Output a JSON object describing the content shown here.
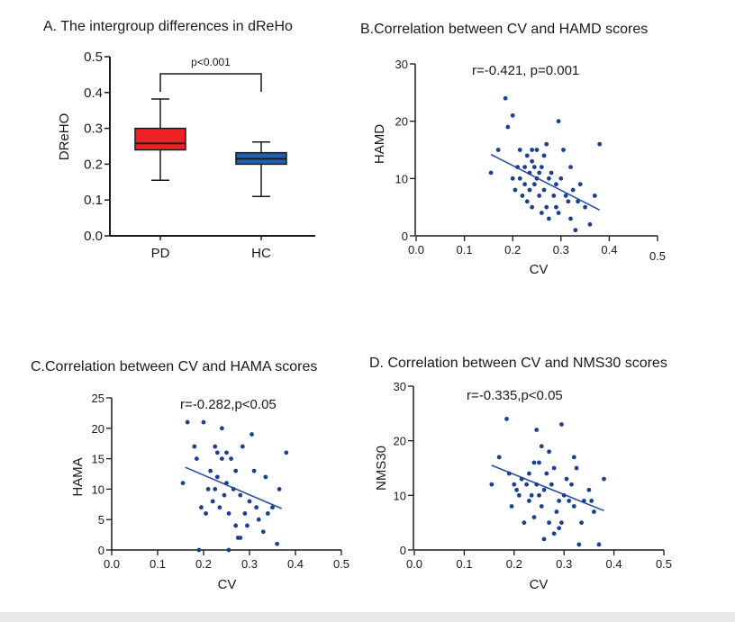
{
  "colors": {
    "pd_box": "#ee2124",
    "hc_box": "#1f5fae",
    "points": "#1d3f91",
    "fit_line": "#2a4ea0",
    "axis": "#1a1a1a"
  },
  "chart_data": [
    {
      "type": "box",
      "title": "A. The intergroup differences in dReHo",
      "xlabel": "",
      "ylabel": "DReHO",
      "ylim": [
        0.0,
        0.5
      ],
      "yticks": [
        "0.0",
        "0.1",
        "0.2",
        "0.3",
        "0.4",
        "0.5"
      ],
      "categories": [
        "PD",
        "HC"
      ],
      "boxes": [
        {
          "name": "PD",
          "min": 0.155,
          "q1": 0.24,
          "median": 0.258,
          "q3": 0.3,
          "max": 0.382,
          "color": "#ee2124"
        },
        {
          "name": "HC",
          "min": 0.11,
          "q1": 0.2,
          "median": 0.215,
          "q3": 0.232,
          "max": 0.262,
          "color": "#1f5fae"
        }
      ],
      "annotation": "p<0.001",
      "grid": false
    },
    {
      "type": "scatter",
      "title": "B.Correlation between CV and HAMD scores",
      "xlabel": "CV",
      "ylabel": "HAMD",
      "xlim": [
        0.0,
        0.5
      ],
      "ylim": [
        0,
        30
      ],
      "xticks": [
        "0.0",
        "0.1",
        "0.2",
        "0.3",
        "0.4",
        "0.5"
      ],
      "yticks": [
        "0",
        "10",
        "20",
        "30"
      ],
      "annotation": "r=-0.421, p=0.001",
      "fit_line": [
        [
          0.155,
          14.2
        ],
        [
          0.38,
          4.5
        ]
      ],
      "points": [
        [
          0.155,
          11
        ],
        [
          0.17,
          15
        ],
        [
          0.185,
          24
        ],
        [
          0.19,
          19
        ],
        [
          0.2,
          21
        ],
        [
          0.2,
          10
        ],
        [
          0.205,
          8
        ],
        [
          0.21,
          12
        ],
        [
          0.215,
          10
        ],
        [
          0.215,
          15
        ],
        [
          0.22,
          7
        ],
        [
          0.225,
          12
        ],
        [
          0.225,
          9
        ],
        [
          0.23,
          14
        ],
        [
          0.23,
          6
        ],
        [
          0.235,
          11
        ],
        [
          0.235,
          8
        ],
        [
          0.24,
          13
        ],
        [
          0.24,
          15
        ],
        [
          0.24,
          5
        ],
        [
          0.245,
          9
        ],
        [
          0.245,
          12
        ],
        [
          0.25,
          10
        ],
        [
          0.25,
          15
        ],
        [
          0.255,
          7
        ],
        [
          0.255,
          11
        ],
        [
          0.26,
          12
        ],
        [
          0.26,
          4
        ],
        [
          0.265,
          8
        ],
        [
          0.265,
          14
        ],
        [
          0.27,
          16
        ],
        [
          0.27,
          5
        ],
        [
          0.275,
          10
        ],
        [
          0.275,
          3
        ],
        [
          0.28,
          11
        ],
        [
          0.285,
          7
        ],
        [
          0.29,
          5
        ],
        [
          0.29,
          9
        ],
        [
          0.295,
          20
        ],
        [
          0.295,
          4
        ],
        [
          0.3,
          10
        ],
        [
          0.305,
          15
        ],
        [
          0.31,
          7
        ],
        [
          0.315,
          6
        ],
        [
          0.32,
          12
        ],
        [
          0.32,
          3
        ],
        [
          0.325,
          8
        ],
        [
          0.33,
          1
        ],
        [
          0.335,
          6
        ],
        [
          0.34,
          9
        ],
        [
          0.35,
          5
        ],
        [
          0.36,
          2
        ],
        [
          0.37,
          7
        ],
        [
          0.38,
          16
        ]
      ],
      "grid": false
    },
    {
      "type": "scatter",
      "title": "C.Correlation between CV and HAMA scores",
      "xlabel": "CV",
      "ylabel": "HAMA",
      "xlim": [
        0.0,
        0.5
      ],
      "ylim": [
        0,
        25
      ],
      "xticks": [
        "0.0",
        "0.1",
        "0.2",
        "0.3",
        "0.4",
        "0.5"
      ],
      "yticks": [
        "0",
        "5",
        "10",
        "15",
        "20",
        "25"
      ],
      "annotation": "r=-0.282,p<0.05",
      "fit_line": [
        [
          0.16,
          13.6
        ],
        [
          0.37,
          6.8
        ]
      ],
      "points": [
        [
          0.155,
          11
        ],
        [
          0.165,
          21
        ],
        [
          0.18,
          17
        ],
        [
          0.185,
          15
        ],
        [
          0.19,
          0
        ],
        [
          0.195,
          7
        ],
        [
          0.2,
          21
        ],
        [
          0.205,
          6
        ],
        [
          0.21,
          10
        ],
        [
          0.215,
          13
        ],
        [
          0.22,
          8
        ],
        [
          0.225,
          10
        ],
        [
          0.225,
          17
        ],
        [
          0.23,
          16
        ],
        [
          0.23,
          12
        ],
        [
          0.235,
          7
        ],
        [
          0.24,
          20
        ],
        [
          0.24,
          15
        ],
        [
          0.245,
          9
        ],
        [
          0.25,
          11
        ],
        [
          0.25,
          16
        ],
        [
          0.255,
          0
        ],
        [
          0.255,
          6
        ],
        [
          0.26,
          15
        ],
        [
          0.265,
          10
        ],
        [
          0.27,
          13
        ],
        [
          0.27,
          4
        ],
        [
          0.275,
          2
        ],
        [
          0.28,
          2
        ],
        [
          0.28,
          9
        ],
        [
          0.285,
          17
        ],
        [
          0.29,
          6
        ],
        [
          0.295,
          4
        ],
        [
          0.3,
          8
        ],
        [
          0.305,
          19
        ],
        [
          0.31,
          13
        ],
        [
          0.315,
          7
        ],
        [
          0.32,
          5
        ],
        [
          0.33,
          3
        ],
        [
          0.335,
          12
        ],
        [
          0.34,
          6
        ],
        [
          0.35,
          7
        ],
        [
          0.36,
          1
        ],
        [
          0.365,
          10
        ],
        [
          0.38,
          16
        ]
      ],
      "grid": false
    },
    {
      "type": "scatter",
      "title": "D. Correlation between CV and NMS30 scores",
      "xlabel": "CV",
      "ylabel": "NMS30",
      "xlim": [
        0.0,
        0.5
      ],
      "ylim": [
        0,
        30
      ],
      "xticks": [
        "0.0",
        "0.1",
        "0.2",
        "0.3",
        "0.4",
        "0.5"
      ],
      "yticks": [
        "0",
        "10",
        "20",
        "30"
      ],
      "annotation": "r=-0.335,p<0.05",
      "fit_line": [
        [
          0.155,
          15.5
        ],
        [
          0.38,
          7.2
        ]
      ],
      "points": [
        [
          0.155,
          12
        ],
        [
          0.17,
          17
        ],
        [
          0.185,
          24
        ],
        [
          0.19,
          14
        ],
        [
          0.195,
          8
        ],
        [
          0.2,
          12
        ],
        [
          0.205,
          11
        ],
        [
          0.21,
          10
        ],
        [
          0.215,
          13
        ],
        [
          0.22,
          5
        ],
        [
          0.225,
          12
        ],
        [
          0.23,
          9
        ],
        [
          0.23,
          14
        ],
        [
          0.235,
          10
        ],
        [
          0.24,
          16
        ],
        [
          0.24,
          6
        ],
        [
          0.245,
          12
        ],
        [
          0.245,
          22
        ],
        [
          0.25,
          10
        ],
        [
          0.25,
          16
        ],
        [
          0.255,
          8
        ],
        [
          0.255,
          19
        ],
        [
          0.26,
          2
        ],
        [
          0.26,
          11
        ],
        [
          0.265,
          14
        ],
        [
          0.27,
          18
        ],
        [
          0.27,
          5
        ],
        [
          0.275,
          12
        ],
        [
          0.28,
          3
        ],
        [
          0.28,
          15
        ],
        [
          0.285,
          7
        ],
        [
          0.29,
          4
        ],
        [
          0.29,
          9
        ],
        [
          0.295,
          23
        ],
        [
          0.295,
          5
        ],
        [
          0.3,
          10
        ],
        [
          0.305,
          13
        ],
        [
          0.31,
          9
        ],
        [
          0.315,
          12
        ],
        [
          0.32,
          8
        ],
        [
          0.32,
          17
        ],
        [
          0.325,
          15
        ],
        [
          0.33,
          1
        ],
        [
          0.335,
          5
        ],
        [
          0.34,
          9
        ],
        [
          0.35,
          11
        ],
        [
          0.355,
          9
        ],
        [
          0.36,
          7
        ],
        [
          0.37,
          1
        ],
        [
          0.38,
          13
        ]
      ],
      "grid": false
    }
  ]
}
